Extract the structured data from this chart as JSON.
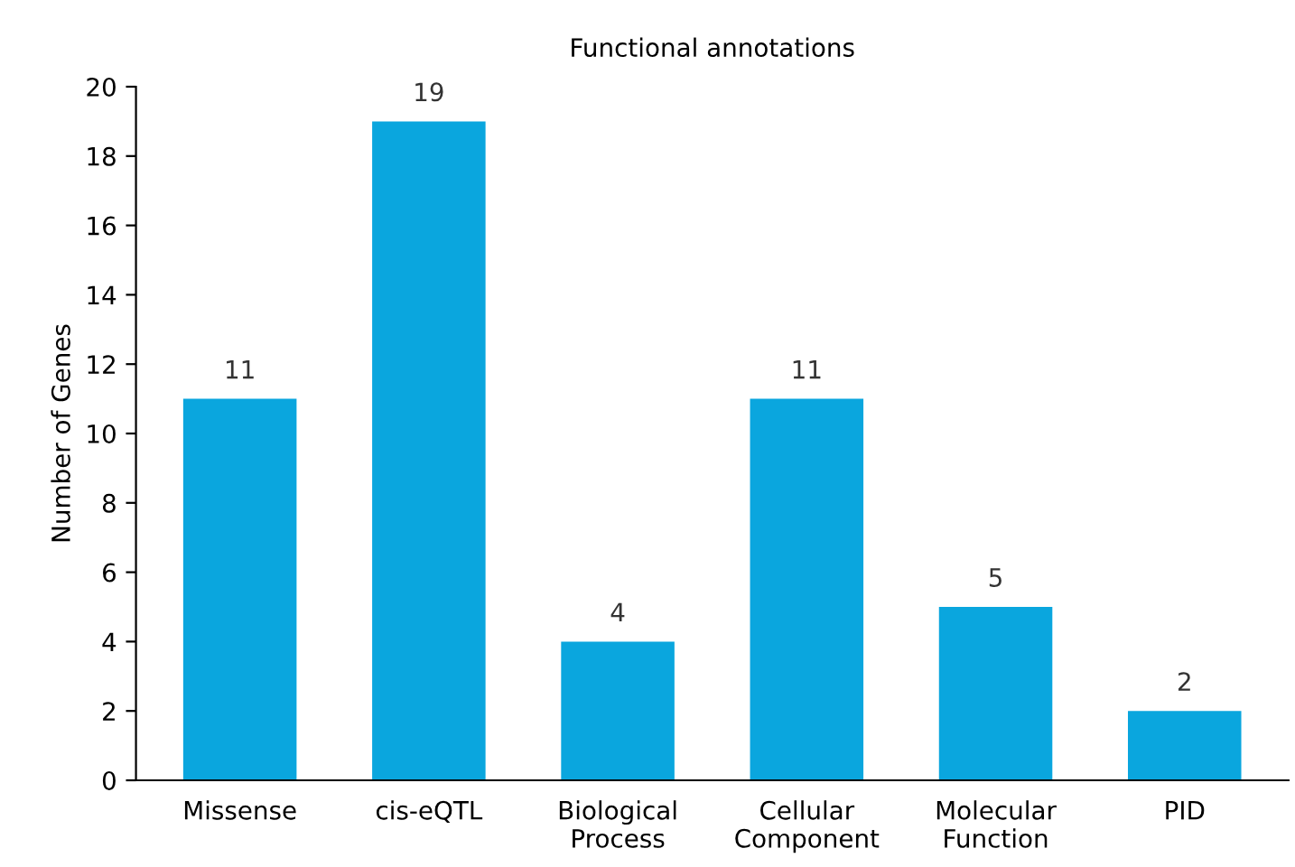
{
  "chart_data": {
    "type": "bar",
    "title": "Functional annotations",
    "ylabel": "Number of Genes",
    "categories": [
      "Missense",
      "cis-eQTL",
      "Biological\nProcess",
      "Cellular\nComponent",
      "Molecular\nFunction",
      "PID"
    ],
    "values": [
      11,
      19,
      4,
      11,
      5,
      2
    ],
    "color": "#0aa6de",
    "ylim": [
      0,
      20
    ],
    "yticks": [
      0,
      2,
      4,
      6,
      8,
      10,
      12,
      14,
      16,
      18,
      20
    ],
    "data_labels": true,
    "grid": false,
    "legend": false
  }
}
